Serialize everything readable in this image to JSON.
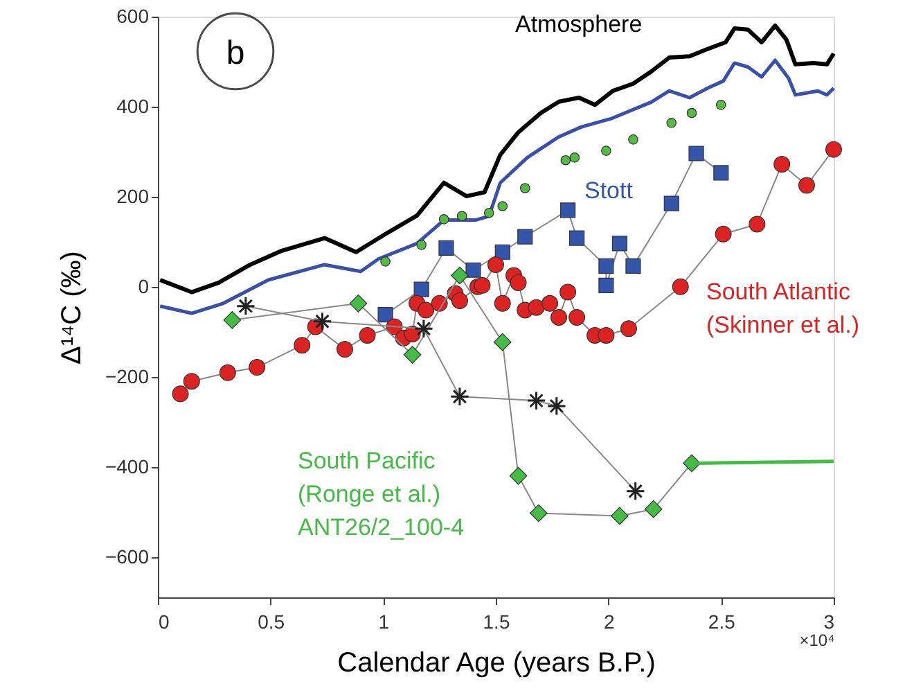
{
  "chart_data": {
    "type": "line",
    "xlabel": "Calendar Age (years B.P.)",
    "ylabel": "Δ¹⁴C (‰)",
    "xlim": [
      0,
      3
    ],
    "ylim": [
      -690,
      600
    ],
    "xticks": [
      0,
      0.5,
      1,
      1.5,
      2,
      2.5,
      3
    ],
    "yticks": [
      -600,
      -400,
      -200,
      0,
      200,
      400,
      600
    ],
    "grid": false,
    "annotations": [
      "b",
      "×10⁴"
    ],
    "series": [
      {
        "name": "Atmosphere",
        "marker": "none",
        "color": "#000000",
        "x": [
          0.01,
          0.15,
          0.27,
          0.41,
          0.55,
          0.74,
          0.88,
          1.01,
          1.15,
          1.27,
          1.37,
          1.45,
          1.52,
          1.6,
          1.7,
          1.78,
          1.87,
          1.94,
          2.02,
          2.11,
          2.19,
          2.27,
          2.36,
          2.44,
          2.52,
          2.56,
          2.62,
          2.68,
          2.74,
          2.79,
          2.83,
          2.91,
          2.97,
          3.0
        ],
        "values": [
          15,
          -12,
          9,
          49,
          80,
          108,
          77,
          117,
          158,
          231,
          201,
          210,
          293,
          343,
          386,
          411,
          420,
          404,
          435,
          451,
          478,
          509,
          512,
          528,
          543,
          574,
          571,
          543,
          580,
          549,
          494,
          497,
          494,
          518
        ]
      },
      {
        "marker": "none",
        "color": "#3a4fa8",
        "x": [
          0.01,
          0.15,
          0.29,
          0.49,
          0.74,
          0.9,
          0.98,
          1.15,
          1.27,
          1.41,
          1.47,
          1.52,
          1.64,
          1.78,
          1.88,
          2.01,
          2.19,
          2.27,
          2.36,
          2.44,
          2.51,
          2.56,
          2.62,
          2.68,
          2.74,
          2.8,
          2.83,
          2.93,
          2.97,
          3.0
        ],
        "values": [
          -43,
          -59,
          -37,
          15,
          49,
          34,
          62,
          96,
          148,
          148,
          157,
          231,
          287,
          333,
          355,
          373,
          410,
          435,
          420,
          441,
          457,
          497,
          488,
          466,
          503,
          463,
          426,
          435,
          426,
          441
        ]
      },
      {
        "type": "scatter",
        "marker": "circle",
        "color": "#55bb44",
        "x": [
          1.01,
          1.17,
          1.27,
          1.35,
          1.47,
          1.53,
          1.63,
          1.81,
          1.85,
          1.99,
          2.11,
          2.28,
          2.37,
          2.5
        ],
        "values": [
          56,
          93,
          150,
          157,
          164,
          179,
          219,
          281,
          287,
          302,
          327,
          364,
          386,
          404
        ]
      },
      {
        "name": "Stott",
        "marker": "square",
        "color": "#3355aa",
        "x": [
          1.01,
          1.17,
          1.28,
          1.4,
          1.53,
          1.63,
          1.82,
          1.86,
          1.99,
          1.99,
          2.05,
          2.11,
          2.28,
          2.39,
          2.5
        ],
        "values": [
          -62,
          -6,
          86,
          37,
          77,
          111,
          170,
          108,
          46,
          3,
          96,
          46,
          185,
          296,
          253
        ]
      },
      {
        "name": "South Atlantic\n(Skinner et al.)",
        "marker": "circle",
        "color": "#dd2222",
        "x": [
          0.1,
          0.15,
          0.31,
          0.44,
          0.64,
          0.7,
          0.83,
          0.93,
          1.05,
          1.09,
          1.13,
          1.15,
          1.19,
          1.25,
          1.32,
          1.34,
          1.42,
          1.44,
          1.5,
          1.53,
          1.58,
          1.6,
          1.63,
          1.68,
          1.74,
          1.78,
          1.82,
          1.86,
          1.94,
          1.99,
          2.09,
          2.32,
          2.51,
          2.66,
          2.77,
          2.88,
          3.0
        ],
        "values": [
          -238,
          -210,
          -191,
          -179,
          -130,
          -89,
          -139,
          -108,
          -89,
          -114,
          -105,
          -37,
          -52,
          -37,
          -15,
          -31,
          0,
          3,
          49,
          -37,
          25,
          9,
          -52,
          -46,
          -37,
          -68,
          -12,
          -68,
          -108,
          -108,
          -93,
          0,
          117,
          139,
          272,
          225,
          305
        ]
      },
      {
        "name": "South Pacific\n(Ronge et al.)\nANT26/2_100-4",
        "marker": "diamond",
        "color": "#44bb44",
        "x": [
          0.33,
          0.89,
          1.13,
          1.34,
          1.53,
          1.6,
          1.69,
          2.05,
          2.2,
          2.37
        ],
        "values": [
          -74,
          -37,
          -151,
          25,
          -123,
          -420,
          -503,
          -509,
          -494,
          -392
        ]
      },
      {
        "marker": "cross",
        "color": "#222222",
        "x": [
          0.39,
          0.73,
          1.18,
          1.34,
          1.68,
          1.77,
          2.12
        ],
        "values": [
          -43,
          -77,
          -93,
          -244,
          -253,
          -265,
          -454
        ]
      },
      {
        "marker": "none",
        "color": "#44bb44",
        "x": [
          2.37,
          3.0
        ],
        "values": [
          -392,
          -388
        ]
      }
    ]
  }
}
